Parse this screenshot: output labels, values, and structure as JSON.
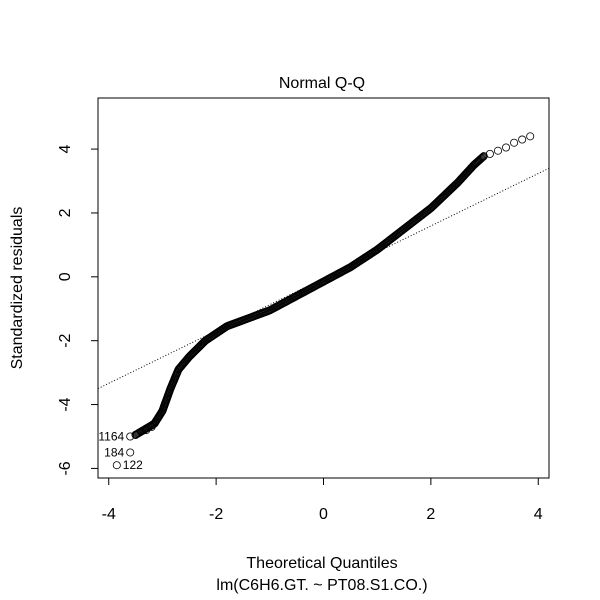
{
  "chart_data": {
    "type": "scatter",
    "title": "Normal Q-Q",
    "xlabel": "Theoretical Quantiles",
    "ylabel": "Standardized residuals",
    "subtitle": "lm(C6H6.GT. ~ PT08.S1.CO.)",
    "xlim": [
      -4.2,
      4.2
    ],
    "ylim": [
      -6.3,
      5.6
    ],
    "x_ticks": [
      -4,
      -2,
      0,
      2,
      4
    ],
    "y_ticks": [
      -6,
      -4,
      -2,
      0,
      2,
      4
    ],
    "x_tick_labels": [
      "-4",
      "-2",
      "0",
      "2",
      "4"
    ],
    "y_tick_labels": [
      "-6",
      "-4",
      "-2",
      "0",
      "2",
      "4"
    ],
    "grid": false,
    "reference_line": {
      "style": "dotted",
      "points": [
        [
          -4.2,
          -3.5
        ],
        [
          4.2,
          3.4
        ]
      ]
    },
    "curve_knots": [
      [
        -3.5,
        -4.95
      ],
      [
        -3.3,
        -4.75
      ],
      [
        -3.15,
        -4.6
      ],
      [
        -3.0,
        -4.2
      ],
      [
        -2.85,
        -3.5
      ],
      [
        -2.7,
        -2.9
      ],
      [
        -2.5,
        -2.5
      ],
      [
        -2.2,
        -2.0
      ],
      [
        -1.8,
        -1.55
      ],
      [
        -1.0,
        -1.05
      ],
      [
        0.0,
        -0.15
      ],
      [
        0.5,
        0.3
      ],
      [
        1.0,
        0.85
      ],
      [
        1.5,
        1.5
      ],
      [
        2.0,
        2.15
      ],
      [
        2.5,
        2.95
      ],
      [
        2.8,
        3.5
      ],
      [
        3.0,
        3.8
      ]
    ],
    "outliers": [
      {
        "x": -3.2,
        "y": -4.7
      },
      {
        "x": -3.3,
        "y": -4.8
      },
      {
        "x": -3.4,
        "y": -4.85
      },
      {
        "x": -3.5,
        "y": -4.95
      },
      {
        "x": -3.6,
        "y": -5.0,
        "label": "1164"
      },
      {
        "x": -3.6,
        "y": -5.5,
        "label": "184"
      },
      {
        "x": -3.85,
        "y": -5.9,
        "label": "122"
      },
      {
        "x": 3.1,
        "y": 3.85
      },
      {
        "x": 3.25,
        "y": 3.95
      },
      {
        "x": 3.4,
        "y": 4.05
      },
      {
        "x": 3.55,
        "y": 4.2
      },
      {
        "x": 3.7,
        "y": 4.3
      },
      {
        "x": 3.85,
        "y": 4.4
      }
    ]
  }
}
